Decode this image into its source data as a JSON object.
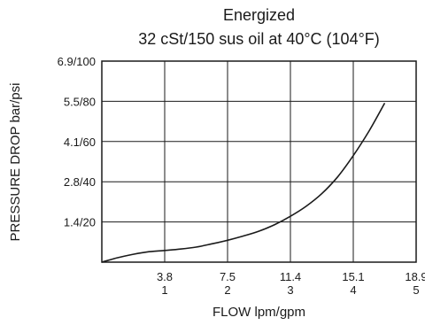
{
  "chart_data": {
    "type": "line",
    "title_lines": [
      "Energized",
      "32 cSt/150 sus oil at 40°C (104°F)"
    ],
    "xlabel": "FLOW lpm/gpm",
    "ylabel": "PRESSURE DROP bar/psi",
    "x_ticks": [
      {
        "value": 1,
        "label_lpm": "3.8",
        "label_gpm": "1"
      },
      {
        "value": 2,
        "label_lpm": "7.5",
        "label_gpm": "2"
      },
      {
        "value": 3,
        "label_lpm": "11.4",
        "label_gpm": "3"
      },
      {
        "value": 4,
        "label_lpm": "15.1",
        "label_gpm": "4"
      },
      {
        "value": 5,
        "label_lpm": "18.9",
        "label_gpm": "5"
      }
    ],
    "y_ticks": [
      {
        "value": 20,
        "label": "1.4/20"
      },
      {
        "value": 40,
        "label": "2.8/40"
      },
      {
        "value": 60,
        "label": "4.1/60"
      },
      {
        "value": 80,
        "label": "5.5/80"
      },
      {
        "value": 100,
        "label": "6.9/100"
      }
    ],
    "xlim": [
      0,
      5
    ],
    "ylim": [
      0,
      100
    ],
    "x_unit": "gpm",
    "y_unit": "psi",
    "grid": true,
    "series": [
      {
        "x": [
          0,
          0.25,
          0.5,
          0.75,
          1.0,
          1.25,
          1.5,
          1.75,
          2.0,
          2.25,
          2.5,
          2.75,
          3.0,
          3.25,
          3.5,
          3.75,
          4.0,
          4.25,
          4.5
        ],
        "y": [
          0,
          2.2,
          3.9,
          5.2,
          5.8,
          6.5,
          7.5,
          9.1,
          10.9,
          13.0,
          15.4,
          18.7,
          22.8,
          27.8,
          34.1,
          42.4,
          53.0,
          65.2,
          79.1
        ]
      }
    ],
    "line_color": "#1a1a1a",
    "grid_color": "#1a1a1a"
  }
}
